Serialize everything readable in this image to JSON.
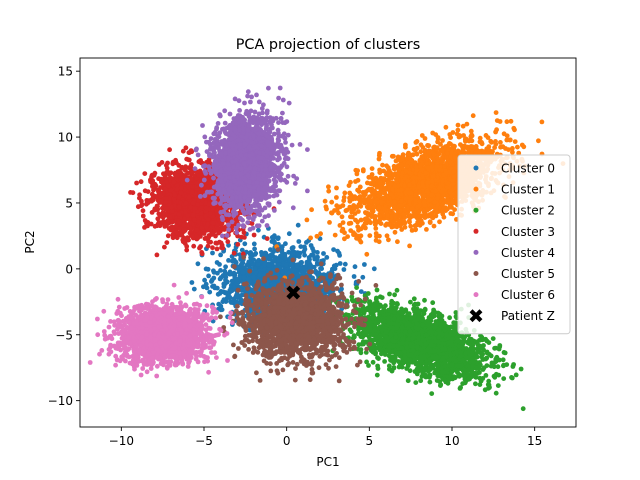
{
  "chart_data": {
    "type": "scatter",
    "title": "PCA projection of clusters",
    "xlabel": "PC1",
    "ylabel": "PC2",
    "xlim": [
      -12.5,
      17.5
    ],
    "ylim": [
      -12.0,
      16.0
    ],
    "xticks": [
      -10,
      -5,
      0,
      5,
      10,
      15
    ],
    "yticks": [
      -10,
      -5,
      0,
      5,
      10,
      15
    ],
    "grid": false,
    "legend_position": "center-right",
    "series": [
      {
        "name": "Cluster 0",
        "color": "#1f77b4",
        "center": [
          -0.5,
          -1.0
        ],
        "spread": [
          1.8,
          1.3
        ],
        "corr": 0.0,
        "count": 1400
      },
      {
        "name": "Cluster 1",
        "color": "#ff7f0e",
        "center": [
          8.5,
          6.5
        ],
        "spread": [
          2.2,
          1.6
        ],
        "corr": 0.55,
        "count": 2200
      },
      {
        "name": "Cluster 2",
        "color": "#2ca02c",
        "center": [
          8.0,
          -5.5
        ],
        "spread": [
          2.0,
          1.3
        ],
        "corr": -0.55,
        "count": 2200
      },
      {
        "name": "Cluster 3",
        "color": "#d62728",
        "center": [
          -5.5,
          5.0
        ],
        "spread": [
          1.3,
          1.3
        ],
        "corr": -0.1,
        "count": 1800
      },
      {
        "name": "Cluster 4",
        "color": "#9467bd",
        "center": [
          -2.5,
          8.0
        ],
        "spread": [
          1.0,
          1.8
        ],
        "corr": 0.1,
        "count": 2000
      },
      {
        "name": "Cluster 5",
        "color": "#8c564b",
        "center": [
          0.5,
          -4.0
        ],
        "spread": [
          1.5,
          1.4
        ],
        "corr": 0.0,
        "count": 2000
      },
      {
        "name": "Cluster 6",
        "color": "#e377c2",
        "center": [
          -7.5,
          -5.0
        ],
        "spread": [
          1.3,
          1.0
        ],
        "corr": 0.0,
        "count": 2000
      }
    ],
    "highlight": {
      "name": "Patient Z",
      "x": 0.4,
      "y": -1.8,
      "color": "#000000",
      "marker": "X"
    }
  }
}
